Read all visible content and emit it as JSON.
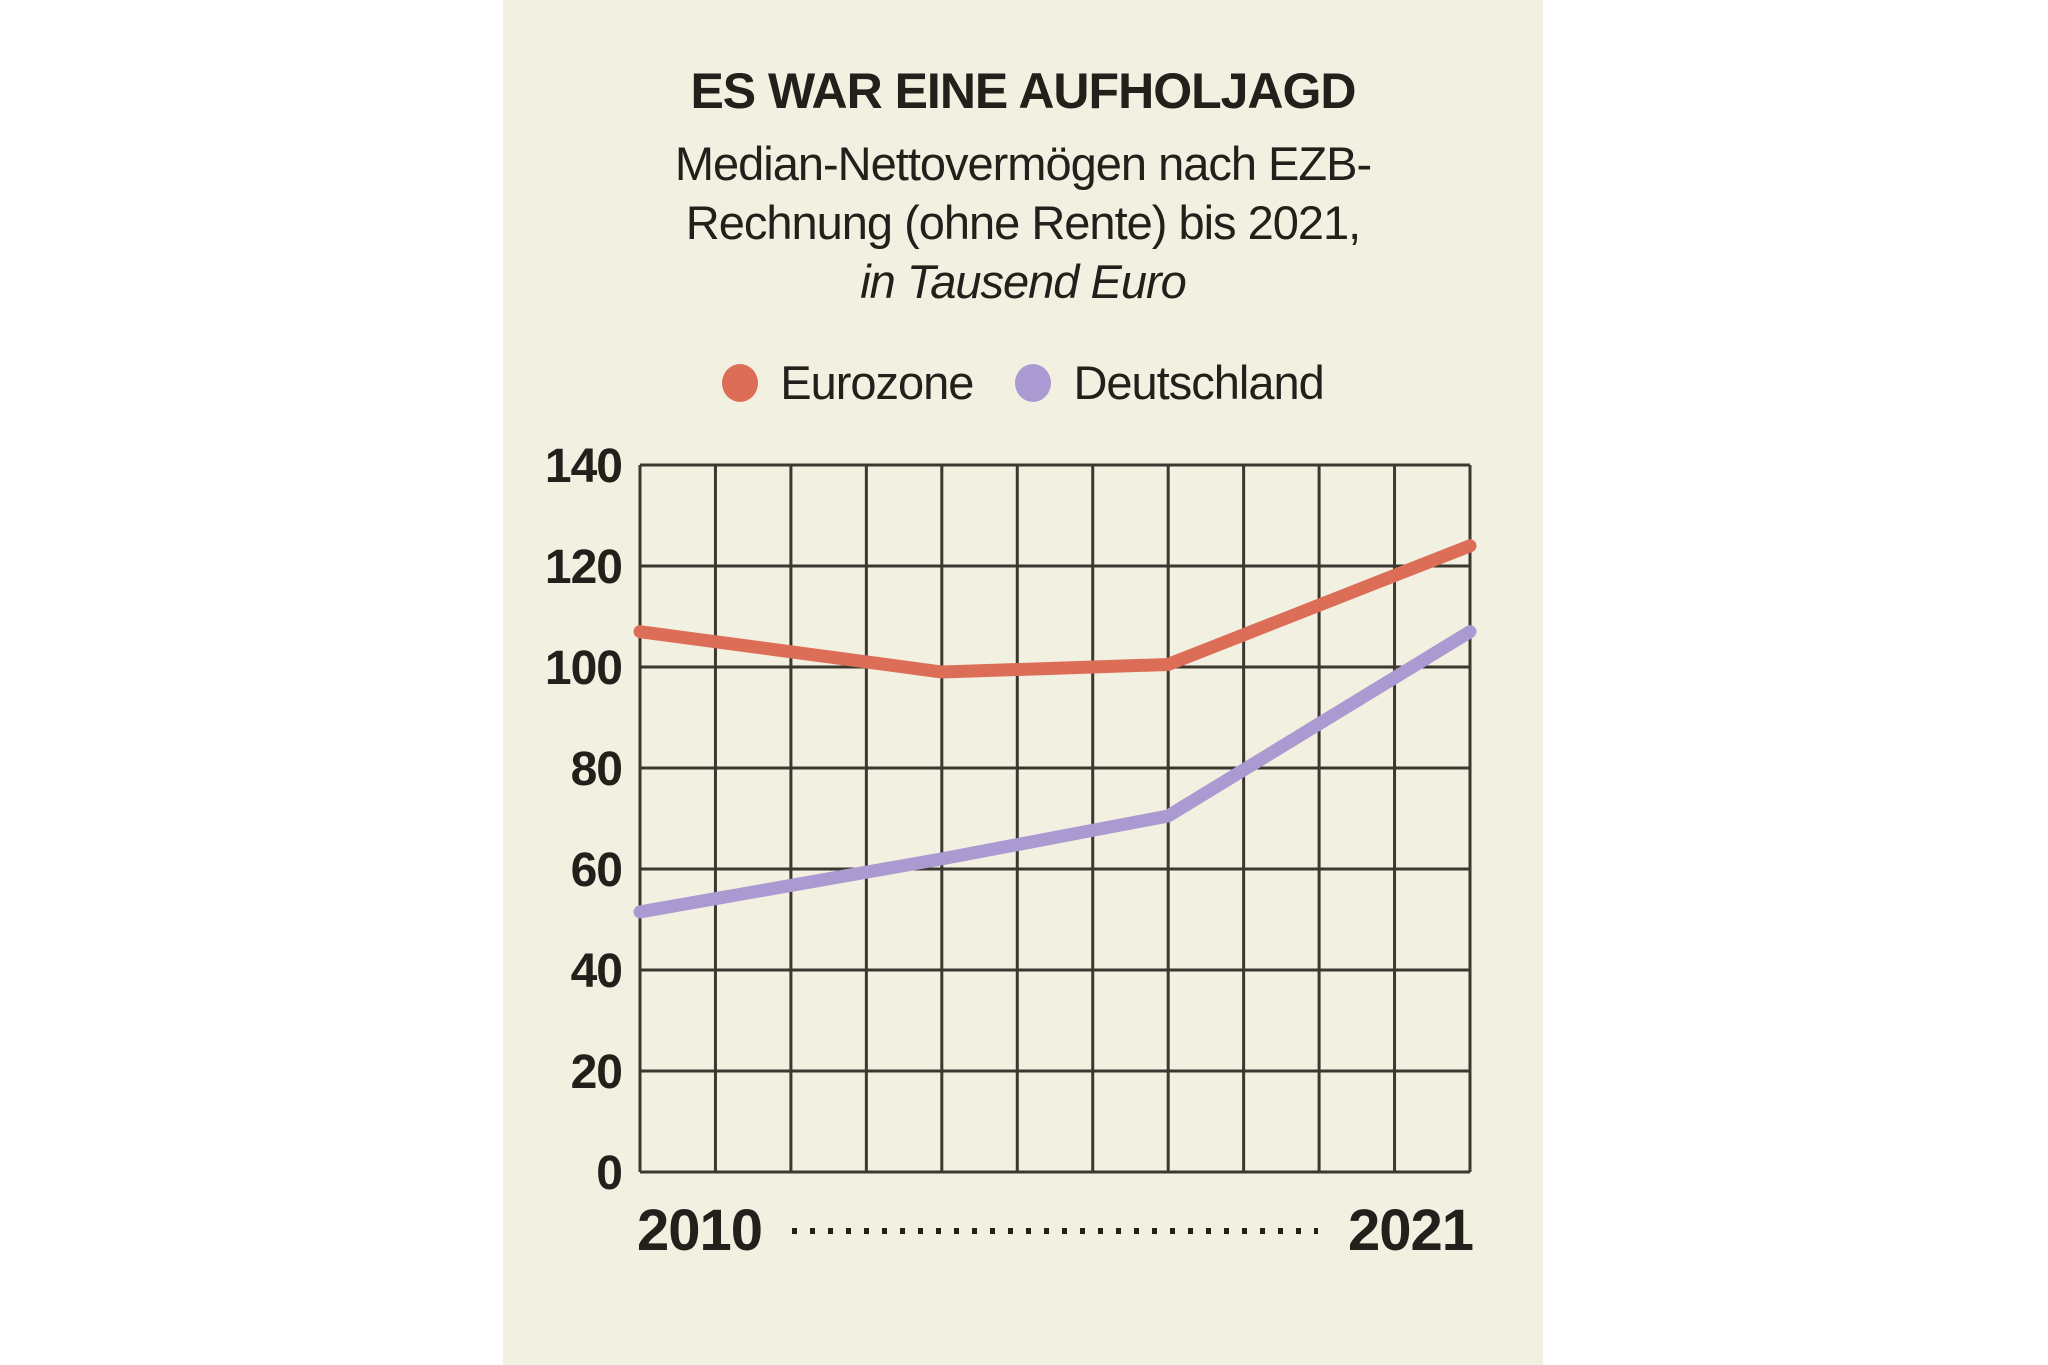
{
  "panel": {
    "background": "#f2f0e1",
    "page_background": "#ffffff",
    "ink_color": "#21201a",
    "grid_color": "#3a382f"
  },
  "header": {
    "title": "ES WAR EINE AUFHOLJAGD",
    "subtitle_line1": "Median-Nettovermögen nach EZB-",
    "subtitle_line2": "Rechnung (ohne Rente) bis 2021,",
    "subtitle_line3": "in Tausend Euro"
  },
  "legend": {
    "items": [
      {
        "label": "Eurozone",
        "color": "#dc6e58"
      },
      {
        "label": "Deutschland",
        "color": "#ab99d1"
      }
    ]
  },
  "chart_data": {
    "type": "line",
    "title": "ES WAR EINE AUFHOLJAGD",
    "subtitle": "Median-Nettovermögen nach EZB-Rechnung (ohne Rente) bis 2021, in Tausend Euro",
    "unit": "Tausend Euro",
    "x": [
      2010,
      2014,
      2017,
      2021
    ],
    "series": [
      {
        "name": "Eurozone",
        "color": "#dc6e58",
        "values": [
          107,
          99,
          100.5,
          124
        ]
      },
      {
        "name": "Deutschland",
        "color": "#ab99d1",
        "values": [
          51.5,
          62,
          70.5,
          107
        ]
      }
    ],
    "xlim": [
      2010,
      2021
    ],
    "ylim": [
      0,
      140
    ],
    "y_ticks": [
      0,
      20,
      40,
      60,
      80,
      100,
      120,
      140
    ],
    "x_gridline_step_years": 1,
    "x_axis_labels": {
      "left": "2010",
      "right": "2021"
    },
    "grid": true,
    "legend_position": "top"
  }
}
